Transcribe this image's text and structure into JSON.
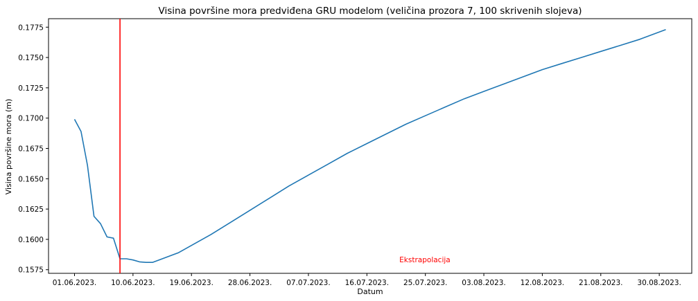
{
  "chart_data": {
    "type": "line",
    "title": "Visina površine mora predviđena GRU modelom (veličina prozora 7, 100 skrivenih slojeva)",
    "xlabel": "Datum",
    "ylabel": "Visina površine mora (m)",
    "x_ticks": [
      "01.06.2023.",
      "10.06.2023.",
      "19.06.2023.",
      "28.06.2023.",
      "07.07.2023.",
      "16.07.2023.",
      "25.07.2023.",
      "03.08.2023.",
      "12.08.2023.",
      "21.08.2023.",
      "30.08.2023."
    ],
    "y_ticks": [
      "0.1575",
      "0.1600",
      "0.1625",
      "0.1650",
      "0.1675",
      "0.1700",
      "0.1725",
      "0.1750",
      "0.1775"
    ],
    "ylim": [
      0.1572,
      0.1782
    ],
    "xlim": [
      "2023-05-28",
      "2023-09-04"
    ],
    "series": [
      {
        "color": "#1f77b4",
        "x": [
          "2023-06-01",
          "2023-06-02",
          "2023-06-03",
          "2023-06-04",
          "2023-06-05",
          "2023-06-06",
          "2023-06-07",
          "2023-06-08",
          "2023-06-09",
          "2023-06-10",
          "2023-06-11",
          "2023-06-12",
          "2023-06-13",
          "2023-06-14",
          "2023-06-15",
          "2023-06-17",
          "2023-06-19",
          "2023-06-22",
          "2023-06-25",
          "2023-06-28",
          "2023-07-01",
          "2023-07-04",
          "2023-07-07",
          "2023-07-10",
          "2023-07-13",
          "2023-07-16",
          "2023-07-19",
          "2023-07-22",
          "2023-07-25",
          "2023-07-28",
          "2023-07-31",
          "2023-08-03",
          "2023-08-06",
          "2023-08-09",
          "2023-08-12",
          "2023-08-15",
          "2023-08-18",
          "2023-08-21",
          "2023-08-24",
          "2023-08-27",
          "2023-08-31"
        ],
        "values": [
          0.1699,
          0.1689,
          0.1661,
          0.1619,
          0.1613,
          0.1602,
          0.1601,
          0.1584,
          0.1584,
          0.1583,
          0.15815,
          0.1581,
          0.1581,
          0.1583,
          0.1585,
          0.1589,
          0.1595,
          0.1604,
          0.1614,
          0.1624,
          0.1634,
          0.1644,
          0.1653,
          0.1662,
          0.1671,
          0.1679,
          0.1687,
          0.1695,
          0.1702,
          0.1709,
          0.1716,
          0.1722,
          0.1728,
          0.1734,
          0.174,
          0.1745,
          0.175,
          0.1755,
          0.176,
          0.1765,
          0.1773
        ]
      }
    ],
    "vline": {
      "x": "2023-06-08",
      "color": "#ff0000"
    },
    "annotation": {
      "text": "Ekstrapolacija",
      "x": "2023-07-21",
      "y": 0.1581,
      "color": "#ff0000"
    }
  }
}
